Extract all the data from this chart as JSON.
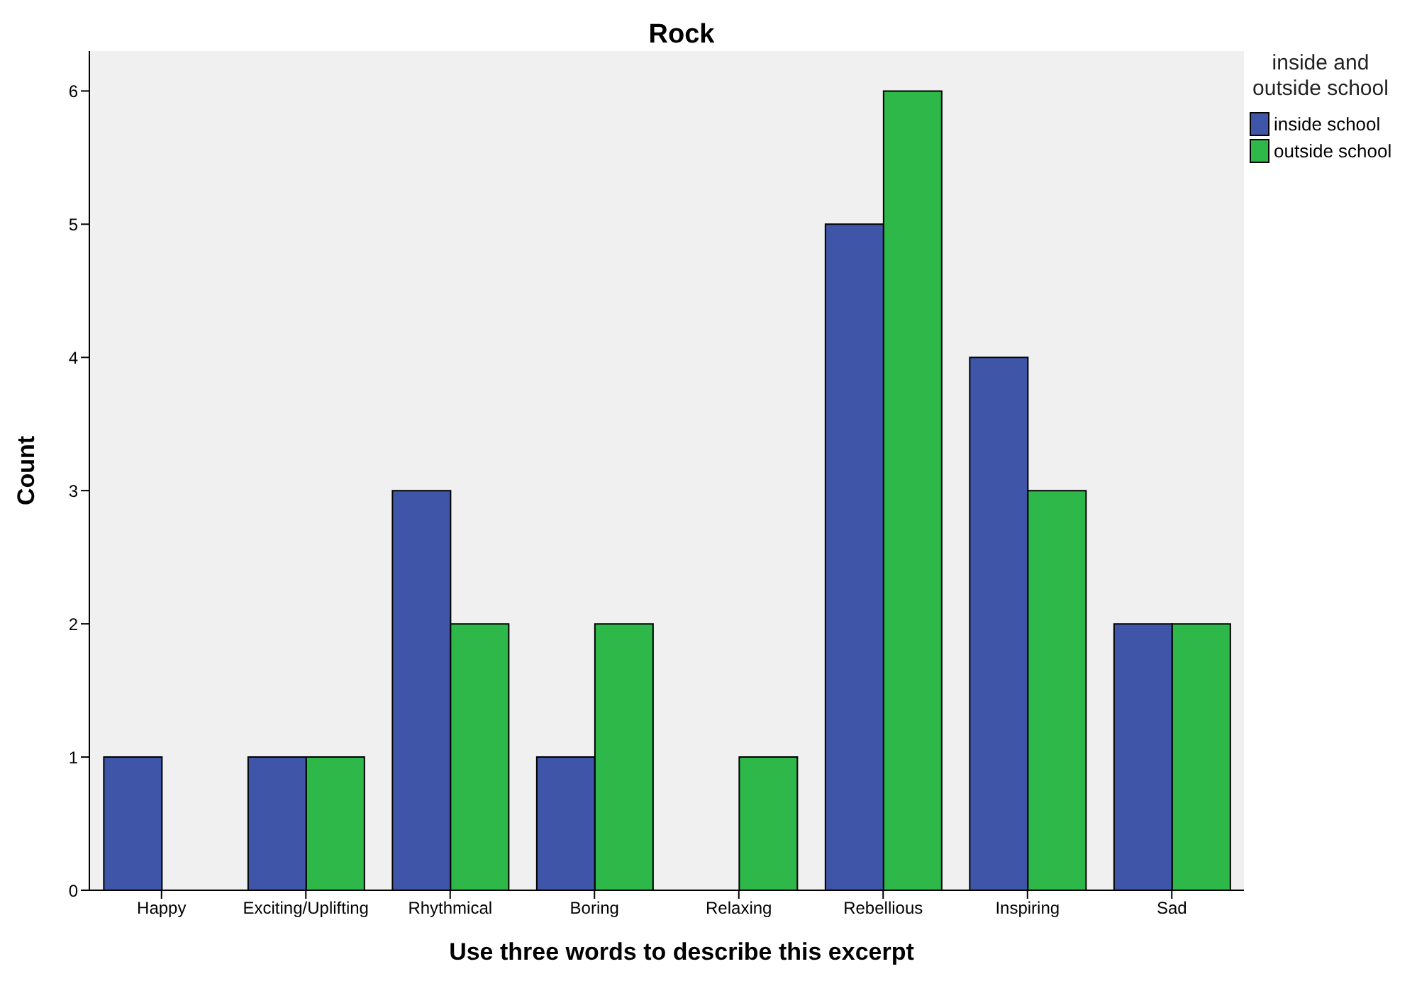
{
  "chart_data": {
    "type": "bar",
    "title": "Rock",
    "xlabel": "Use three words to describe this excerpt",
    "ylabel": "Count",
    "legend_title": "inside and outside school",
    "categories": [
      "Happy",
      "Exciting/Uplifting",
      "Rhythmical",
      "Boring",
      "Relaxing",
      "Rebellious",
      "Inspiring",
      "Sad"
    ],
    "series": [
      {
        "name": "inside school",
        "color": "#3f56a8",
        "values": [
          1,
          1,
          3,
          1,
          null,
          5,
          4,
          2
        ]
      },
      {
        "name": "outside school",
        "color": "#2eb84a",
        "values": [
          null,
          1,
          2,
          2,
          1,
          6,
          3,
          2
        ]
      }
    ],
    "ylim": [
      0,
      6.3
    ],
    "yticks": [
      0,
      1,
      2,
      3,
      4,
      5,
      6
    ],
    "grid": false,
    "legend": "top right"
  }
}
